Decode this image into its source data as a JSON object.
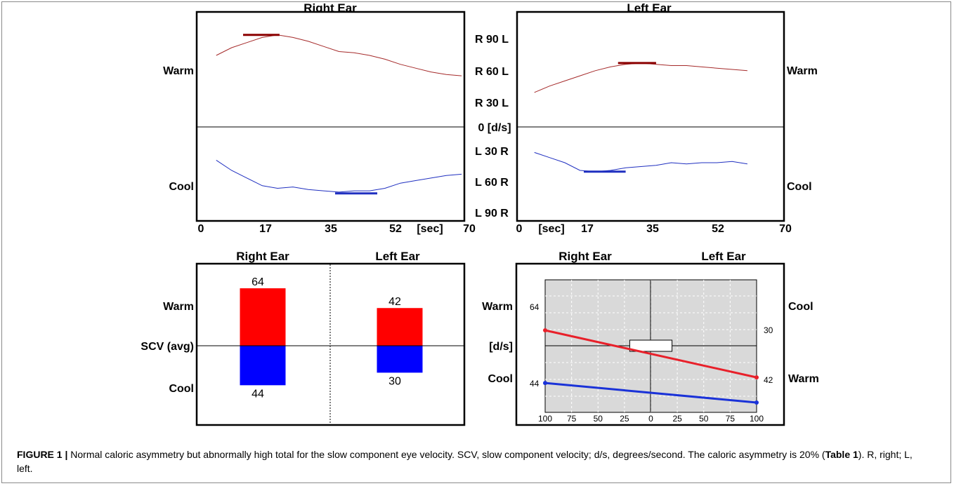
{
  "chart_data": [
    {
      "type": "line",
      "title": "Right Ear",
      "x_ticks": [
        "0",
        "17",
        "35",
        "52",
        "70"
      ],
      "x_unit": "[sec]",
      "xlim": [
        0,
        70
      ],
      "ylim": [
        -90,
        90
      ],
      "row_labels": {
        "warm": "Warm",
        "cool": "Cool"
      },
      "series": [
        {
          "name": "Warm",
          "color": "#a52a2a",
          "x": [
            4,
            8,
            12,
            16,
            20,
            24,
            28,
            32,
            36,
            40,
            44,
            48,
            52,
            56,
            60,
            64,
            68
          ],
          "y": [
            56,
            62,
            66,
            70,
            72,
            70,
            67,
            63,
            59,
            58,
            56,
            53,
            49,
            46,
            43,
            41,
            40
          ],
          "peak": {
            "x0": 11,
            "x1": 20.5,
            "value": 72
          }
        },
        {
          "name": "Cool",
          "color": "#1f2fc0",
          "x": [
            4,
            8,
            12,
            16,
            20,
            24,
            28,
            32,
            36,
            40,
            44,
            48,
            52,
            56,
            60,
            64,
            68
          ],
          "y": [
            -26,
            -34,
            -40,
            -46,
            -48,
            -47,
            -49,
            -50,
            -51,
            -50,
            -50,
            -48,
            -44,
            -42,
            -40,
            -38,
            -37
          ],
          "peak": {
            "x0": 35,
            "x1": 46,
            "value": -52
          }
        }
      ]
    },
    {
      "type": "line",
      "title": "Left Ear",
      "x_ticks": [
        "0",
        "17",
        "35",
        "52",
        "70"
      ],
      "x_unit": "[sec]",
      "xlim": [
        0,
        70
      ],
      "ylim": [
        -90,
        90
      ],
      "row_labels": {
        "warm": "Warm",
        "cool": "Cool"
      },
      "series": [
        {
          "name": "Warm",
          "color": "#a52a2a",
          "x": [
            4,
            8,
            12,
            16,
            20,
            24,
            28,
            32,
            36,
            40,
            44,
            48,
            52,
            56,
            60
          ],
          "y": [
            27,
            32,
            36,
            40,
            44,
            47,
            49,
            50,
            49,
            48,
            48,
            47,
            46,
            45,
            44
          ],
          "peak": {
            "x0": 26,
            "x1": 36,
            "value": 50
          }
        },
        {
          "name": "Cool",
          "color": "#1f2fc0",
          "x": [
            4,
            8,
            12,
            16,
            20,
            24,
            28,
            32,
            36,
            40,
            44,
            48,
            52,
            56,
            60
          ],
          "y": [
            -20,
            -24,
            -28,
            -34,
            -35,
            -34,
            -32,
            -31,
            -30,
            -28,
            -29,
            -28,
            -28,
            -27,
            -29
          ],
          "peak": {
            "x0": 17,
            "x1": 28,
            "value": -35
          }
        }
      ]
    },
    {
      "type": "bar",
      "ylabel": "SCV (avg)",
      "categories": [
        "Right Ear",
        "Left Ear"
      ],
      "row_labels": {
        "warm": "Warm",
        "cool": "Cool"
      },
      "ylim": [
        -80,
        80
      ],
      "series": [
        {
          "name": "Warm",
          "color": "#ff0000",
          "values": [
            64,
            42
          ],
          "labels": [
            "64",
            "42"
          ]
        },
        {
          "name": "Cool",
          "color": "#0000ff",
          "values": [
            44,
            30
          ],
          "labels": [
            "44",
            "30"
          ]
        }
      ]
    },
    {
      "type": "line",
      "column_labels": [
        "Right Ear",
        "Left Ear"
      ],
      "left_labels": {
        "top": "Warm",
        "middle": "[d/s]",
        "bottom": "Cool"
      },
      "right_labels": {
        "top": "Cool",
        "bottom": "Warm"
      },
      "x_ticks": [
        "100",
        "75",
        "50",
        "25",
        "0",
        "25",
        "50",
        "75",
        "100"
      ],
      "xlim": [
        -100,
        100
      ],
      "grid": true,
      "background": "#d9d9d9",
      "series": [
        {
          "name": "Warm",
          "color": "#e8202a",
          "start_label": "64",
          "end_label": "42",
          "start": 64,
          "end": 42
        },
        {
          "name": "Cool",
          "color": "#1a32d8",
          "start_label": "44",
          "end_label": "30",
          "start": 44,
          "end": 30
        }
      ],
      "box": {
        "x0": -20,
        "x1": 20
      }
    }
  ],
  "axis": {
    "scale_labels": [
      "R 90 L",
      "R 60 L",
      "R 30 L",
      "0 [d/s]",
      "L 30 R",
      "L 60 R",
      "L 90 R"
    ],
    "x_tick_left": "70",
    "x_tick_right": "0"
  },
  "caption": {
    "figure_label": "FIGURE 1 |",
    "text_before": " Normal caloric asymmetry but abnormally high total for the slow component eye velocity. SCV, slow component velocity; d/s, degrees/second. The caloric asymmetry is 20% (",
    "table_ref": "Table 1",
    "text_after": "). R, right; L, left."
  }
}
